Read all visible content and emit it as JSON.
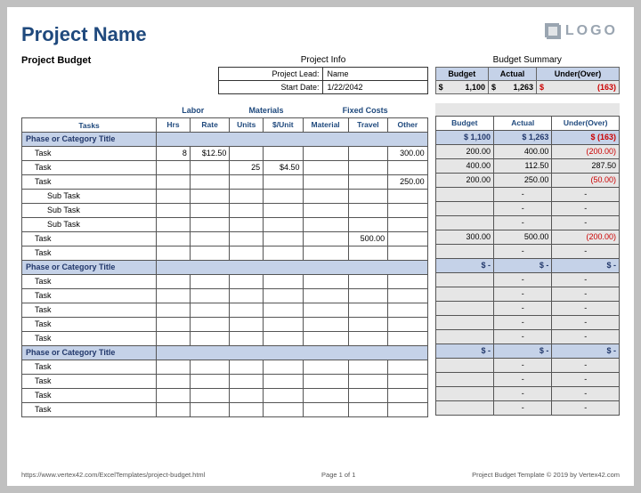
{
  "title": "Project Name",
  "subtitle": "Project Budget",
  "logo_text": "LOGO",
  "project_info": {
    "heading": "Project Info",
    "lead_label": "Project Lead:",
    "lead_value": "Name",
    "start_label": "Start Date:",
    "start_value": "1/22/2042"
  },
  "budget_summary": {
    "heading": "Budget Summary",
    "cols": [
      "Budget",
      "Actual",
      "Under(Over)"
    ],
    "budget": "1,100",
    "actual": "1,263",
    "under_over": "(163)"
  },
  "column_groups": {
    "labor": "Labor",
    "materials": "Materials",
    "fixed": "Fixed Costs",
    "cols": [
      "Tasks",
      "Hrs",
      "Rate",
      "Units",
      "$/Unit",
      "Material",
      "Travel",
      "Other"
    ]
  },
  "right_cols": [
    "Budget",
    "Actual",
    "Under(Over)"
  ],
  "col_widths_left": [
    136,
    34,
    40,
    34,
    40,
    46,
    40,
    40
  ],
  "col_widths_right": [
    66,
    66,
    76
  ],
  "colors": {
    "title": "#1f497d",
    "phase_bg": "#c5d2e8",
    "summary_bg": "#e6e6e6",
    "negative": "#cc0000",
    "border": "#555555"
  },
  "rows": [
    {
      "type": "phase",
      "name": "Phase or Category Title",
      "budget": "$     1,100",
      "actual": "$     1,263",
      "uo": "$       (163)",
      "uo_neg": true
    },
    {
      "type": "task",
      "name": "Task",
      "hrs": "8",
      "rate": "$12.50",
      "units": "",
      "unit_price": "",
      "material": "",
      "travel": "",
      "other": "300.00",
      "budget": "200.00",
      "actual": "400.00",
      "uo": "(200.00)",
      "uo_neg": true
    },
    {
      "type": "task",
      "name": "Task",
      "hrs": "",
      "rate": "",
      "units": "25",
      "unit_price": "$4.50",
      "material": "",
      "travel": "",
      "other": "",
      "budget": "400.00",
      "actual": "112.50",
      "uo": "287.50"
    },
    {
      "type": "task",
      "name": "Task",
      "hrs": "",
      "rate": "",
      "units": "",
      "unit_price": "",
      "material": "",
      "travel": "",
      "other": "250.00",
      "budget": "200.00",
      "actual": "250.00",
      "uo": "(50.00)",
      "uo_neg": true
    },
    {
      "type": "subtask",
      "name": "Sub Task",
      "budget": "",
      "actual": "-",
      "uo": "-"
    },
    {
      "type": "subtask",
      "name": "Sub Task",
      "budget": "",
      "actual": "-",
      "uo": "-"
    },
    {
      "type": "subtask",
      "name": "Sub Task",
      "budget": "",
      "actual": "-",
      "uo": "-"
    },
    {
      "type": "task",
      "name": "Task",
      "hrs": "",
      "rate": "",
      "units": "",
      "unit_price": "",
      "material": "",
      "travel": "500.00",
      "other": "",
      "budget": "300.00",
      "actual": "500.00",
      "uo": "(200.00)",
      "uo_neg": true
    },
    {
      "type": "task",
      "name": "Task",
      "budget": "",
      "actual": "-",
      "uo": "-"
    },
    {
      "type": "phase",
      "name": "Phase or Category Title",
      "budget": "$          -",
      "actual": "$          -",
      "uo": "$           -"
    },
    {
      "type": "task",
      "name": "Task",
      "budget": "",
      "actual": "-",
      "uo": "-"
    },
    {
      "type": "task",
      "name": "Task",
      "budget": "",
      "actual": "-",
      "uo": "-"
    },
    {
      "type": "task",
      "name": "Task",
      "budget": "",
      "actual": "-",
      "uo": "-"
    },
    {
      "type": "task",
      "name": "Task",
      "budget": "",
      "actual": "-",
      "uo": "-"
    },
    {
      "type": "task",
      "name": "Task",
      "budget": "",
      "actual": "-",
      "uo": "-"
    },
    {
      "type": "phase",
      "name": "Phase or Category Title",
      "budget": "$          -",
      "actual": "$          -",
      "uo": "$           -"
    },
    {
      "type": "task",
      "name": "Task",
      "budget": "",
      "actual": "-",
      "uo": "-"
    },
    {
      "type": "task",
      "name": "Task",
      "budget": "",
      "actual": "-",
      "uo": "-"
    },
    {
      "type": "task",
      "name": "Task",
      "budget": "",
      "actual": "-",
      "uo": "-"
    },
    {
      "type": "task",
      "name": "Task",
      "budget": "",
      "actual": "-",
      "uo": "-"
    }
  ],
  "footer": {
    "left": "https://www.vertex42.com/ExcelTemplates/project-budget.html",
    "center": "Page 1 of 1",
    "right": "Project Budget Template © 2019 by Vertex42.com"
  }
}
